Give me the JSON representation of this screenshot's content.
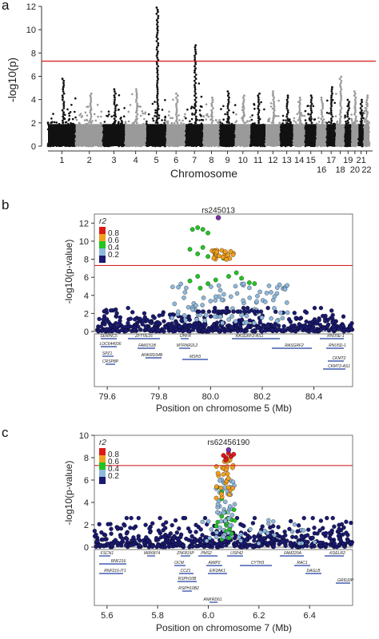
{
  "colors": {
    "sig_line": "#d62728",
    "chr_dark": "#111111",
    "chr_light": "#9a9a9a",
    "ld_low": "#1a1a70",
    "ld_02": "#8fb8dc",
    "ld_04": "#22c422",
    "ld_06": "#f0a020",
    "ld_08": "#dd1a1a",
    "lead": "#7a2fb0",
    "gene": "#1f3fa0"
  },
  "chart_data": [
    {
      "panel_label": "a",
      "type": "scatter",
      "xlabel": "Chromosome",
      "ylabel": "-log10(p)",
      "ylim": [
        0,
        12
      ],
      "yticks": [
        "0",
        "2",
        "4",
        "6",
        "8",
        "10",
        "12"
      ],
      "significance_line": 7.3,
      "chromosomes": [
        "1",
        "2",
        "3",
        "4",
        "5",
        "6",
        "7",
        "8",
        "9",
        "10",
        "11",
        "12",
        "13",
        "14",
        "15",
        "16",
        "17",
        "18",
        "19",
        "20",
        "21",
        "22"
      ],
      "chromosome_peak_values": [
        5.8,
        4.6,
        4.9,
        5.0,
        12.0,
        4.6,
        8.8,
        4.2,
        4.8,
        4.5,
        4.6,
        4.8,
        4.4,
        4.2,
        4.4,
        4.3,
        5.2,
        6.0,
        4.0,
        4.8,
        4.0,
        4.5
      ],
      "tick_labels_row1": [
        "1",
        "2",
        "3",
        "4",
        "5",
        "6",
        "7",
        "8",
        "9",
        "10",
        "11",
        "12",
        "13",
        "14",
        "15",
        "17",
        "19",
        "21"
      ],
      "tick_labels_row2": [
        "16",
        "18",
        "20",
        "22"
      ]
    },
    {
      "panel_label": "b",
      "type": "scatter",
      "xlabel": "Position on chromosome 5 (Mb)",
      "ylabel": "-log10(p-value)",
      "xlim": [
        79.55,
        80.55
      ],
      "ylim": [
        0,
        13
      ],
      "xticks": [
        "79.6",
        "79.8",
        "80.0",
        "80.2",
        "80.4"
      ],
      "yticks": [
        "0",
        "2",
        "4",
        "6",
        "8",
        "10",
        "12"
      ],
      "significance_line": 7.3,
      "lead_snp": {
        "name": "rs245013",
        "x": 80.03,
        "y": 12.6
      },
      "legend_title": "r2",
      "legend_ticks": [
        "0.8",
        "0.6",
        "0.4",
        "0.2"
      ],
      "genes": [
        {
          "name": "SERINC5"
        },
        {
          "name": "LOC644936"
        },
        {
          "name": "SPZ1"
        },
        {
          "name": "CRSP8P"
        },
        {
          "name": "ZFYVE16"
        },
        {
          "name": "FAM151B"
        },
        {
          "name": "ANKRD34B"
        },
        {
          "name": "DHFR"
        },
        {
          "name": "MTRNR2L2"
        },
        {
          "name": "MSH3"
        },
        {
          "name": "RASGRF2-AS1"
        },
        {
          "name": "RASGRF2"
        },
        {
          "name": "RNU5E-1"
        },
        {
          "name": "RNU5D-1"
        },
        {
          "name": "CKMT2"
        },
        {
          "name": "CKMT2-AS1"
        }
      ]
    },
    {
      "panel_label": "c",
      "type": "scatter",
      "xlabel": "Position on chromosome 7 (Mb)",
      "ylabel": "-log10(p-value)",
      "xlim": [
        5.55,
        6.57
      ],
      "ylim": [
        0,
        10
      ],
      "xticks": [
        "5.6",
        "5.8",
        "6.0",
        "6.2",
        "6.4"
      ],
      "yticks": [
        "0",
        "2",
        "4",
        "6",
        "8",
        "10"
      ],
      "significance_line": 7.3,
      "lead_snp": {
        "name": "rs62456190",
        "x": 6.08,
        "y": 8.7
      },
      "legend_title": "r2",
      "legend_ticks": [
        "0.8",
        "0.6",
        "0.4",
        "0.2"
      ],
      "genes": [
        {
          "name": "FSCN1"
        },
        {
          "name": "RNF216"
        },
        {
          "name": "RNF216-IT1"
        },
        {
          "name": "MIR6874"
        },
        {
          "name": "ZNF815P"
        },
        {
          "name": "OCM"
        },
        {
          "name": "CCZ1"
        },
        {
          "name": "RSPH10B"
        },
        {
          "name": "RSPH10B2"
        },
        {
          "name": "PMS2"
        },
        {
          "name": "AIMP2"
        },
        {
          "name": "EIF2AK1"
        },
        {
          "name": "ANKRD61"
        },
        {
          "name": "USP42"
        },
        {
          "name": "CYTH3"
        },
        {
          "name": "FAM220A"
        },
        {
          "name": "RAC1"
        },
        {
          "name": "DAGLB"
        },
        {
          "name": "KDELR2"
        },
        {
          "name": "GRID2IP"
        }
      ]
    }
  ]
}
